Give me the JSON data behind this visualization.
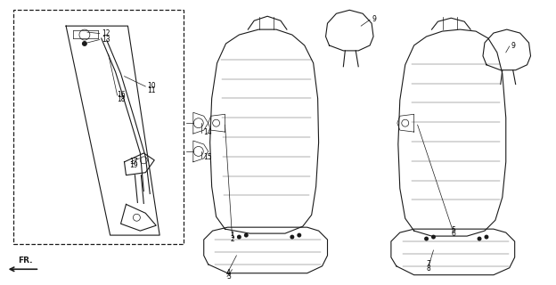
{
  "bg_color": "#ffffff",
  "line_color": "#1a1a1a",
  "fig_width": 6.24,
  "fig_height": 3.2,
  "dpi": 100
}
